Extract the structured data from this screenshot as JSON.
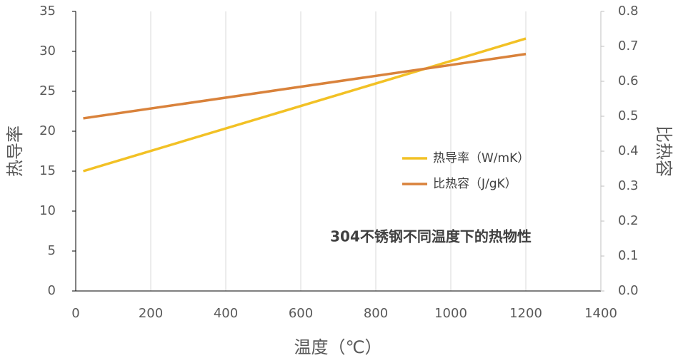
{
  "chart_data": {
    "type": "line",
    "annotation": "304不锈钢不同温度下的热物性",
    "xlabel": "温度（℃）",
    "ylabel": "热导率",
    "y2label": "比热容",
    "x": [
      20,
      1200
    ],
    "series": [
      {
        "name": "热导率（W/mK）",
        "color": "#f2c125",
        "values": [
          15,
          31.6
        ]
      },
      {
        "name": "比热容（J/gK）",
        "color": "#d9823b",
        "values": [
          0.494,
          0.678
        ],
        "axis": "y2"
      }
    ],
    "xlim": [
      0,
      1400
    ],
    "xticks": [
      0,
      200,
      400,
      600,
      800,
      1000,
      1200,
      1400
    ],
    "ylim": [
      0,
      35
    ],
    "yticks": [
      0,
      5,
      10,
      15,
      20,
      25,
      30,
      35
    ],
    "y2lim": [
      0,
      0.8
    ],
    "y2ticks": [
      {
        "value": 0,
        "label": "0.0"
      },
      0.1,
      0.2,
      0.3,
      0.4,
      0.5,
      0.6,
      0.7,
      0.8
    ],
    "grid": true
  }
}
